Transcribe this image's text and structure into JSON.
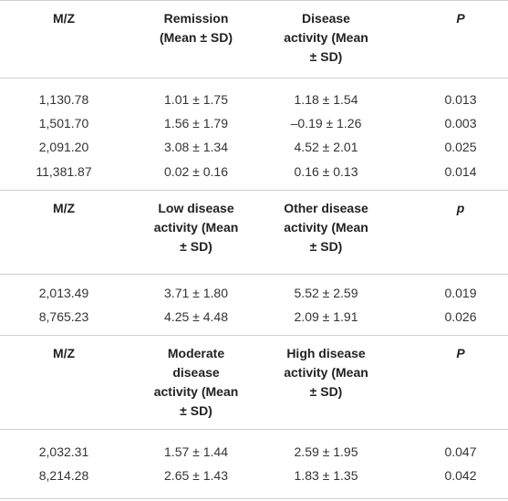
{
  "sections": [
    {
      "header": [
        "M/Z",
        "Remission (Mean ± SD)",
        "Disease activity (Mean ± SD)",
        "P"
      ],
      "rows": [
        [
          "1,130.78",
          "1.01 ± 1.75",
          "1.18 ± 1.54",
          "0.013"
        ],
        [
          "1,501.70",
          "1.56 ± 1.79",
          "–0.19 ± 1.26",
          "0.003"
        ],
        [
          "2,091.20",
          "3.08 ± 1.34",
          "4.52 ± 2.01",
          "0.025"
        ],
        [
          "11,381.87",
          "0.02 ± 0.16",
          "0.16 ± 0.13",
          "0.014"
        ]
      ]
    },
    {
      "header": [
        "M/Z",
        "Low disease activity (Mean ± SD)",
        "Other disease activity (Mean ± SD)",
        "p"
      ],
      "rows": [
        [
          "2,013.49",
          "3.71 ± 1.80",
          "5.52 ± 2.59",
          "0.019"
        ],
        [
          "8,765.23",
          "4.25 ± 4.48",
          "2.09 ± 1.91",
          "0.026"
        ]
      ]
    },
    {
      "header": [
        "M/Z",
        "Moderate disease activity (Mean ± SD)",
        "High disease activity (Mean ± SD)",
        "P"
      ],
      "rows": [
        [
          "2,032.31",
          "1.57 ± 1.44",
          "2.59 ± 1.95",
          "0.047"
        ],
        [
          "8,214.28",
          "2.65 ± 1.43",
          "1.83 ± 1.35",
          "0.042"
        ]
      ]
    }
  ]
}
